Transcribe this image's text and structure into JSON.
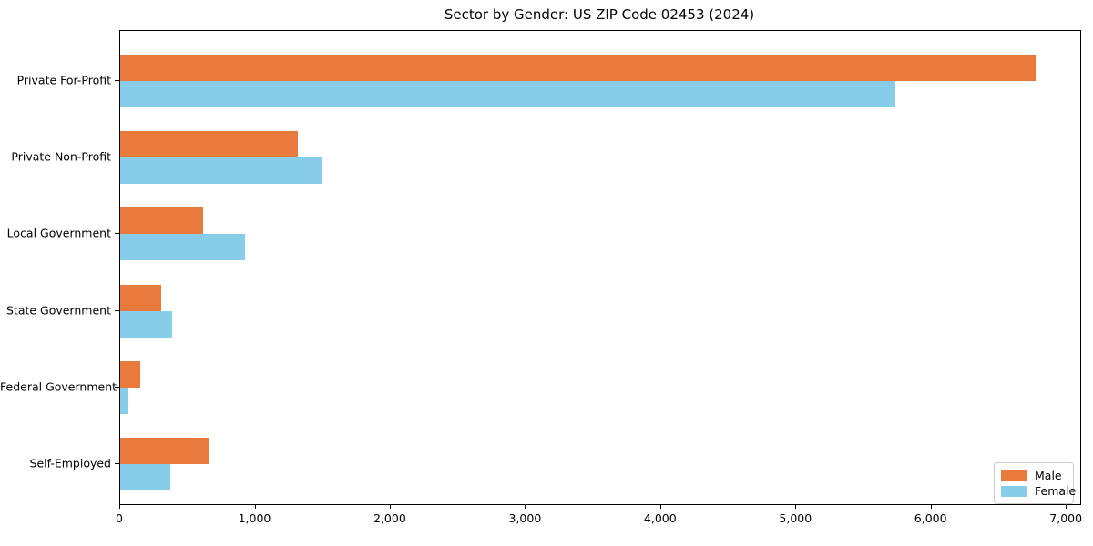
{
  "title": "Sector by Gender: US ZIP Code 02453 (2024)",
  "chart_data": {
    "type": "bar",
    "orientation": "horizontal",
    "title": "Sector by Gender: US ZIP Code 02453 (2024)",
    "categories": [
      "Private For-Profit",
      "Private Non-Profit",
      "Local Government",
      "State Government",
      "Federal Government",
      "Self-Employed"
    ],
    "series": [
      {
        "name": "Male",
        "color": "#e87a3c",
        "values": [
          6770,
          1310,
          610,
          300,
          150,
          660
        ]
      },
      {
        "name": "Female",
        "color": "#87cdea",
        "values": [
          5730,
          1490,
          920,
          385,
          60,
          370
        ]
      }
    ],
    "xlabel": "",
    "ylabel": "",
    "xlim": [
      0,
      7100
    ],
    "xticks": [
      0,
      1000,
      2000,
      3000,
      4000,
      5000,
      6000,
      7000
    ],
    "xtick_labels": [
      "0",
      "1,000",
      "2,000",
      "3,000",
      "4,000",
      "5,000",
      "6,000",
      "7,000"
    ],
    "grid": false,
    "legend_position": "lower right",
    "background": "#ffffff",
    "spine_color": "#000000"
  }
}
